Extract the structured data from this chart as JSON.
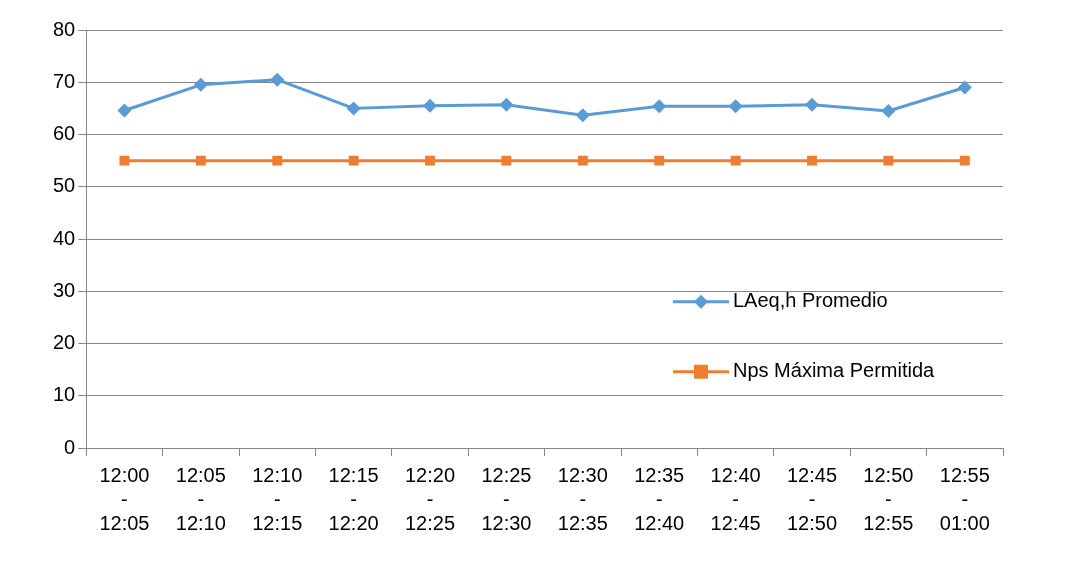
{
  "chart_data": {
    "type": "line",
    "categories": [
      "12:00 - 12:05",
      "12:05 - 12:10",
      "12:10 - 12:15",
      "12:15 - 12:20",
      "12:20 - 12:25",
      "12:25 - 12:30",
      "12:30 - 12:35",
      "12:35 - 12:40",
      "12:40 - 12:45",
      "12:45 - 12:50",
      "12:50 - 12:55",
      "12:55 - 01:00"
    ],
    "series": [
      {
        "name": "LAeq,h Promedio",
        "color": "#5b9bd5",
        "marker": "diamond",
        "values": [
          64.6,
          69.5,
          70.5,
          65,
          65.5,
          65.7,
          63.7,
          65.4,
          65.4,
          65.7,
          64.5,
          69
        ]
      },
      {
        "name": "Nps Máxima Permitida",
        "color": "#ed7d31",
        "marker": "square",
        "values": [
          55,
          55,
          55,
          55,
          55,
          55,
          55,
          55,
          55,
          55,
          55,
          55
        ]
      }
    ],
    "ylim": [
      0,
      80
    ],
    "yticks": [
      0,
      10,
      20,
      30,
      40,
      50,
      60,
      70,
      80
    ],
    "grid": "y",
    "legend": "right"
  }
}
